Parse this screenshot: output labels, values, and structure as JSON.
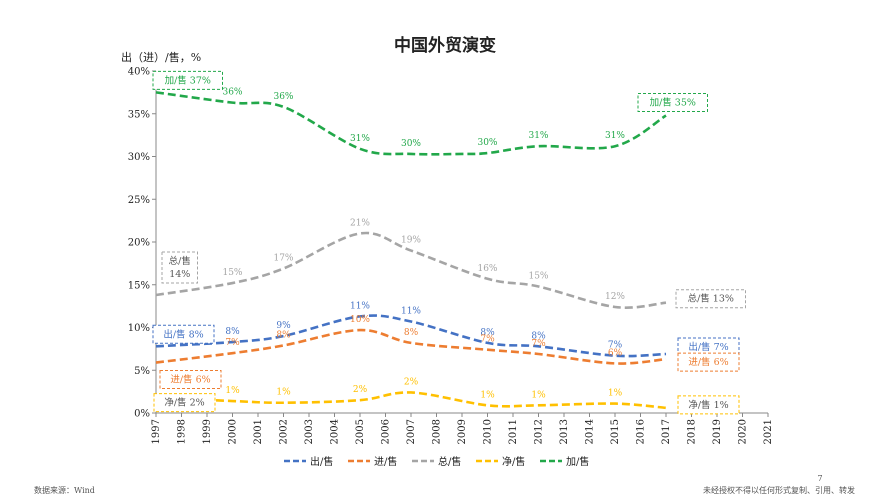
{
  "page_number": "7",
  "footer": {
    "source": "数据来源：Wind",
    "disclaimer": "未经授权不得以任何形式复制、引用、转发"
  },
  "colors": {
    "export": "#4472C4",
    "import": "#ED7D31",
    "total": "#A5A5A5",
    "net": "#FFC000",
    "processing": "#22A84A"
  },
  "chart_data": {
    "type": "line",
    "title": "中国外贸演变",
    "ylabel": "出（进）/售，%",
    "xlabel": "",
    "ylim": [
      0,
      40
    ],
    "yticks": [
      "0%",
      "5%",
      "10%",
      "15%",
      "20%",
      "25%",
      "30%",
      "35%",
      "40%"
    ],
    "categories": [
      "1997",
      "1998",
      "1999",
      "2000",
      "2001",
      "2002",
      "2003",
      "2004",
      "2005",
      "2006",
      "2007",
      "2008",
      "2009",
      "2010",
      "2011",
      "2012",
      "2013",
      "2014",
      "2015",
      "2016",
      "2017",
      "2018",
      "2019",
      "2020",
      "2021"
    ],
    "legend_position": "bottom",
    "grid": false,
    "series": [
      {
        "key": "export",
        "name": "出/售",
        "x": [
          1997,
          2000,
          2002,
          2005,
          2007,
          2010,
          2012,
          2015,
          2017
        ],
        "values": [
          7.8,
          8.3,
          9.0,
          11.3,
          10.7,
          8.2,
          7.8,
          6.7,
          6.9
        ],
        "labels": [
          {
            "x": 2000,
            "text": "8%"
          },
          {
            "x": 2002,
            "text": "9%"
          },
          {
            "x": 2005,
            "text": "11%"
          },
          {
            "x": 2007,
            "text": "11%"
          },
          {
            "x": 2010,
            "text": "8%"
          },
          {
            "x": 2012,
            "text": "8%"
          },
          {
            "x": 2015,
            "text": "7%"
          }
        ]
      },
      {
        "key": "import",
        "name": "进/售",
        "x": [
          1997,
          2000,
          2002,
          2005,
          2007,
          2010,
          2012,
          2015,
          2017
        ],
        "values": [
          5.9,
          7.0,
          7.9,
          9.7,
          8.2,
          7.4,
          6.9,
          5.8,
          6.3
        ],
        "labels": [
          {
            "x": 2000,
            "text": "7%"
          },
          {
            "x": 2002,
            "text": "8%"
          },
          {
            "x": 2005,
            "text": "10%"
          },
          {
            "x": 2007,
            "text": "8%"
          },
          {
            "x": 2010,
            "text": "7%"
          },
          {
            "x": 2012,
            "text": "7%"
          },
          {
            "x": 2015,
            "text": "6%"
          }
        ]
      },
      {
        "key": "total",
        "name": "总/售",
        "x": [
          1997,
          2000,
          2002,
          2005,
          2007,
          2010,
          2012,
          2015,
          2017
        ],
        "values": [
          13.8,
          15.2,
          16.9,
          21.0,
          19.0,
          15.7,
          14.8,
          12.4,
          12.9
        ],
        "labels": [
          {
            "x": 2000,
            "text": "15%"
          },
          {
            "x": 2002,
            "text": "17%"
          },
          {
            "x": 2005,
            "text": "21%"
          },
          {
            "x": 2007,
            "text": "19%"
          },
          {
            "x": 2010,
            "text": "16%"
          },
          {
            "x": 2012,
            "text": "15%"
          },
          {
            "x": 2015,
            "text": "12%"
          }
        ]
      },
      {
        "key": "net",
        "name": "净/售",
        "x": [
          1997,
          2000,
          2002,
          2005,
          2007,
          2010,
          2012,
          2015,
          2017
        ],
        "values": [
          1.8,
          1.4,
          1.2,
          1.5,
          2.4,
          0.9,
          0.9,
          1.1,
          0.6
        ],
        "labels": [
          {
            "x": 2000,
            "text": "1%"
          },
          {
            "x": 2002,
            "text": "1%"
          },
          {
            "x": 2005,
            "text": "2%"
          },
          {
            "x": 2007,
            "text": "2%"
          },
          {
            "x": 2010,
            "text": "1%"
          },
          {
            "x": 2012,
            "text": "1%"
          },
          {
            "x": 2015,
            "text": "1%"
          }
        ]
      },
      {
        "key": "processing",
        "name": "加/售",
        "x": [
          1997,
          2000,
          2002,
          2005,
          2007,
          2009,
          2010,
          2012,
          2015,
          2017
        ],
        "values": [
          37.5,
          36.3,
          35.8,
          30.9,
          30.3,
          30.3,
          30.4,
          31.2,
          31.2,
          34.8
        ],
        "labels": [
          {
            "x": 2000,
            "text": "36%"
          },
          {
            "x": 2002,
            "text": "36%"
          },
          {
            "x": 2005,
            "text": "31%"
          },
          {
            "x": 2007,
            "text": "30%"
          },
          {
            "x": 2010,
            "text": "30%"
          },
          {
            "x": 2012,
            "text": "31%"
          },
          {
            "x": 2015,
            "text": "31%"
          }
        ]
      }
    ],
    "annotations": [
      {
        "key": "processing",
        "text": "加/售 37%",
        "at": 1997,
        "side": "start"
      },
      {
        "key": "processing",
        "text": "加/售 35%",
        "at": 2017,
        "side": "end"
      },
      {
        "key": "total",
        "text": "总/售",
        "text2": "14%",
        "at": 1997,
        "side": "start"
      },
      {
        "key": "total",
        "text": "总/售 13%",
        "at": 2017,
        "side": "end"
      },
      {
        "key": "export",
        "text": "出/售 8%",
        "at": 1997,
        "side": "start"
      },
      {
        "key": "export",
        "text": "出/售 7%",
        "at": 2017,
        "side": "end"
      },
      {
        "key": "import",
        "text": "进/售 6%",
        "at": 1997,
        "side": "start"
      },
      {
        "key": "import",
        "text": "进/售 6%",
        "at": 2017,
        "side": "end"
      },
      {
        "key": "net",
        "text": "净/售 2%",
        "at": 1997,
        "side": "start"
      },
      {
        "key": "net",
        "text": "净/售 1%",
        "at": 2017,
        "side": "end"
      }
    ]
  }
}
